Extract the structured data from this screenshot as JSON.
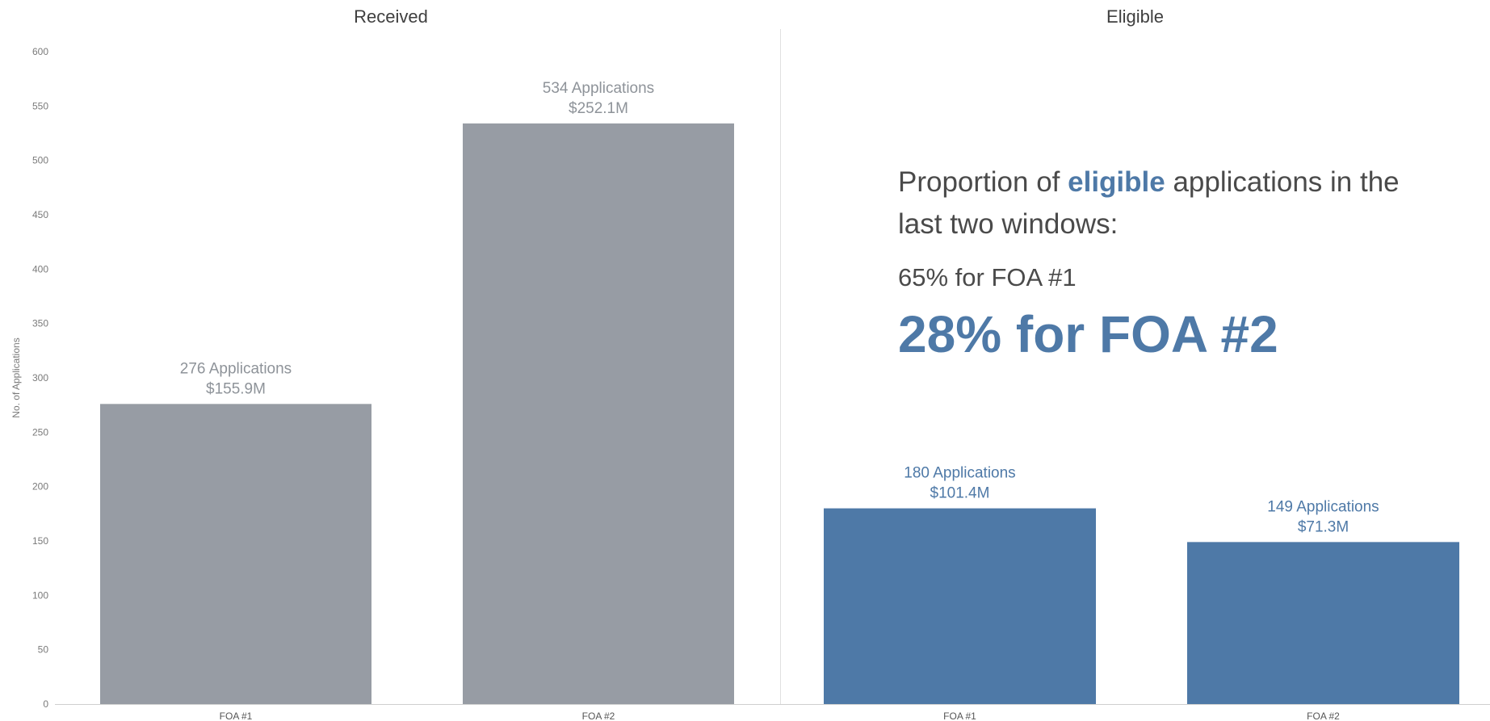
{
  "chart_data": {
    "type": "bar",
    "ylabel": "No. of Applications",
    "ylim": [
      0,
      600
    ],
    "yticks": [
      0,
      50,
      100,
      150,
      200,
      250,
      300,
      350,
      400,
      450,
      500,
      550,
      600
    ],
    "colors": {
      "received": "#979ca4",
      "eligible": "#4e79a7",
      "received_label": "#8e9399",
      "eligible_label": "#4e79a7",
      "axis_text": "#7a7a7a",
      "panel_title": "#3f3f3f"
    },
    "panels": [
      {
        "title": "Received",
        "categories": [
          "FOA #1",
          "FOA #2"
        ],
        "values": [
          276,
          534
        ],
        "labels": [
          [
            "276 Applications",
            "$155.9M"
          ],
          [
            "534 Applications",
            "$252.1M"
          ]
        ]
      },
      {
        "title": "Eligible",
        "categories": [
          "FOA #1",
          "FOA #2"
        ],
        "values": [
          180,
          149
        ],
        "labels": [
          [
            "180 Applications",
            "$101.4M"
          ],
          [
            "149 Applications",
            "$71.3M"
          ]
        ]
      }
    ]
  },
  "callout": {
    "line1_before": "Proportion of ",
    "line1_highlight": "eligible",
    "line1_after": " applications in the",
    "line2": "last two windows:",
    "stat_small": "65% for FOA #1",
    "stat_big": "28% for FOA #2"
  }
}
